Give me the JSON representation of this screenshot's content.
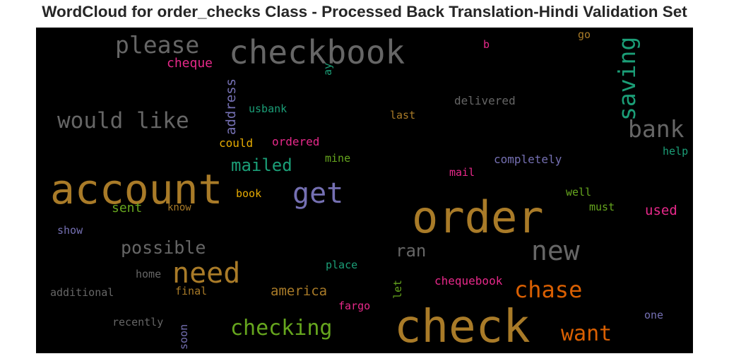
{
  "title": "WordCloud for order_checks Class - Processed Back Translation-Hindi Validation Set",
  "colors": {
    "background": "#000000",
    "title": "#262626",
    "palette": {
      "ochre": "#a97b28",
      "grey": "#666666",
      "teal": "#1b9e77",
      "orange": "#d95f02",
      "purple": "#7570b3",
      "pink": "#e7298a",
      "green": "#66a61e",
      "gold": "#e6ab02"
    }
  },
  "words": [
    {
      "text": "check",
      "color": "#a97b28"
    },
    {
      "text": "order",
      "color": "#a97b28"
    },
    {
      "text": "account",
      "color": "#a97b28"
    },
    {
      "text": "checkbook",
      "color": "#666666"
    },
    {
      "text": "please",
      "color": "#666666"
    },
    {
      "text": "get",
      "color": "#7570b3"
    },
    {
      "text": "need",
      "color": "#a97b28"
    },
    {
      "text": "new",
      "color": "#666666"
    },
    {
      "text": "would like",
      "color": "#666666"
    },
    {
      "text": "saving",
      "color": "#1b9e77"
    },
    {
      "text": "bank",
      "color": "#666666"
    },
    {
      "text": "chase",
      "color": "#d95f02"
    },
    {
      "text": "checking",
      "color": "#66a61e"
    },
    {
      "text": "want",
      "color": "#d95f02"
    },
    {
      "text": "mailed",
      "color": "#1b9e77"
    },
    {
      "text": "possible",
      "color": "#666666"
    },
    {
      "text": "ran",
      "color": "#666666"
    },
    {
      "text": "address",
      "color": "#7570b3"
    },
    {
      "text": "cheque",
      "color": "#e7298a"
    },
    {
      "text": "america",
      "color": "#a97b28"
    },
    {
      "text": "used",
      "color": "#e7298a"
    },
    {
      "text": "sent",
      "color": "#66a61e"
    },
    {
      "text": "delivered",
      "color": "#666666"
    },
    {
      "text": "completely",
      "color": "#7570b3"
    },
    {
      "text": "chequebook",
      "color": "#e7298a"
    },
    {
      "text": "usbank",
      "color": "#1b9e77"
    },
    {
      "text": "ordered",
      "color": "#e7298a"
    },
    {
      "text": "could",
      "color": "#e6ab02"
    },
    {
      "text": "mine",
      "color": "#66a61e"
    },
    {
      "text": "last",
      "color": "#a97b28"
    },
    {
      "text": "mail",
      "color": "#e7298a"
    },
    {
      "text": "well",
      "color": "#66a61e"
    },
    {
      "text": "must",
      "color": "#66a61e"
    },
    {
      "text": "help",
      "color": "#1b9e77"
    },
    {
      "text": "book",
      "color": "#e6ab02"
    },
    {
      "text": "know",
      "color": "#a97b28"
    },
    {
      "text": "show",
      "color": "#7570b3"
    },
    {
      "text": "home",
      "color": "#666666"
    },
    {
      "text": "place",
      "color": "#1b9e77"
    },
    {
      "text": "additional",
      "color": "#666666"
    },
    {
      "text": "final",
      "color": "#a97b28"
    },
    {
      "text": "let",
      "color": "#66a61e"
    },
    {
      "text": "fargo",
      "color": "#e7298a"
    },
    {
      "text": "recently",
      "color": "#666666"
    },
    {
      "text": "soon",
      "color": "#7570b3"
    },
    {
      "text": "one",
      "color": "#7570b3"
    },
    {
      "text": "go",
      "color": "#a97b28"
    },
    {
      "text": "b",
      "color": "#e7298a"
    },
    {
      "text": "ay",
      "color": "#1b9e77"
    }
  ]
}
